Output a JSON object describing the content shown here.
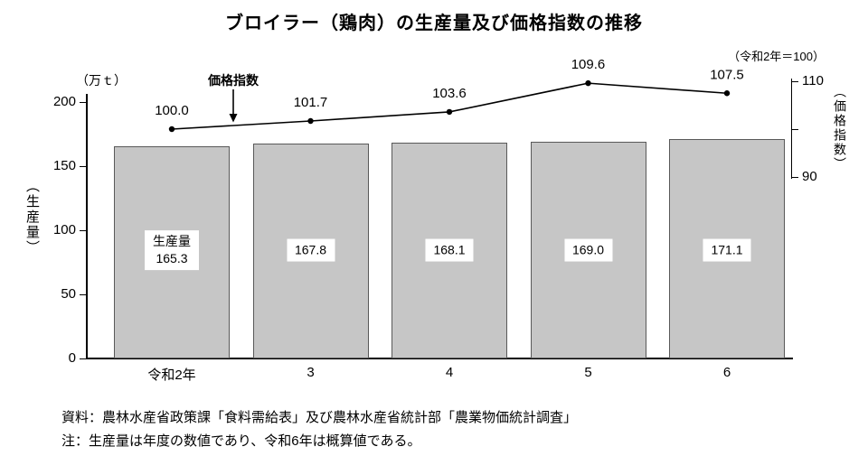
{
  "title": "ブロイラー（鶏肉）の生産量及び価格指数の推移",
  "chart_data": {
    "type": "bar+line combo",
    "categories": [
      "令和2年",
      "3",
      "4",
      "5",
      "6"
    ],
    "series": [
      {
        "name": "生産量",
        "type": "bar",
        "axis": "left",
        "unit": "万t",
        "values": [
          165.3,
          167.8,
          168.1,
          169.0,
          171.1
        ]
      },
      {
        "name": "価格指数",
        "type": "line",
        "axis": "right",
        "values": [
          100.0,
          101.7,
          103.6,
          109.6,
          107.5
        ]
      }
    ],
    "left_axis": {
      "title": "（生産量）",
      "unit_label": "（万ｔ）",
      "range": [
        0,
        200
      ],
      "ticks": [
        0,
        50,
        100,
        150,
        200
      ]
    },
    "right_axis": {
      "title": "（価格指数）",
      "base_note": "（令和2年＝100）",
      "range": [
        90,
        110
      ],
      "ticks": [
        110,
        90
      ],
      "tick_marks": [
        110,
        100,
        90
      ]
    },
    "annotation": "価格指数",
    "bar_inner_label": "生産量",
    "grid": false,
    "legend": "none"
  },
  "notes": {
    "source": "資料：農林水産省政策課「食料需給表」及び農林水産省統計部「農業物価統計調査」",
    "note": "注：生産量は年度の数値であり、令和6年は概算値である。"
  },
  "colors": {
    "bar_fill": "#c6c6c6",
    "bar_border": "#595959",
    "line": "#000000",
    "text": "#000000",
    "background": "#ffffff"
  }
}
